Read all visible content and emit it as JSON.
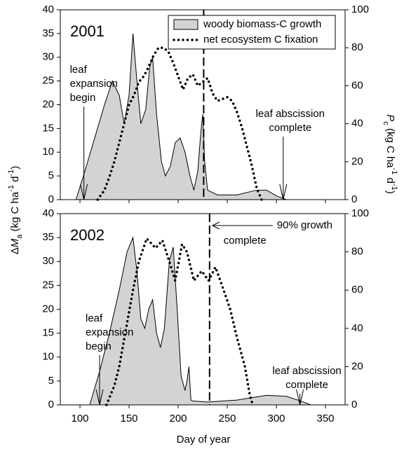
{
  "x_label": "Day of year",
  "y_label": [
    {
      "text": "Δ",
      "style": "normal"
    },
    {
      "text": "M",
      "style": "italic"
    },
    {
      "text": "a",
      "style": "sub"
    },
    {
      "text": "  (kg C ha",
      "style": "normal"
    },
    {
      "text": "-1",
      "style": "sup"
    },
    {
      "text": " d",
      "style": "normal"
    },
    {
      "text": "-1",
      "style": "sup"
    },
    {
      "text": ")",
      "style": "normal"
    }
  ],
  "y2_label": [
    {
      "text": "P",
      "style": "italic"
    },
    {
      "text": "c",
      "style": "sub"
    },
    {
      "text": " (kg C ha",
      "style": "normal"
    },
    {
      "text": "-1",
      "style": "sup"
    },
    {
      "text": " d",
      "style": "normal"
    },
    {
      "text": "-1",
      "style": "sup"
    },
    {
      "text": ")",
      "style": "normal"
    }
  ],
  "chart_data": [
    {
      "type": "line",
      "title": "2001",
      "legend": "upper right",
      "xlim": [
        80,
        370
      ],
      "xticks": [
        100,
        150,
        200,
        250,
        300,
        350
      ],
      "ylim": [
        0,
        40
      ],
      "yticks": [
        0,
        5,
        10,
        15,
        20,
        25,
        30,
        35,
        40
      ],
      "y2lim": [
        0,
        100
      ],
      "y2ticks": [
        0,
        20,
        40,
        60,
        80,
        100
      ],
      "series": [
        {
          "name": "woody biomass-C growth",
          "color": "#d3d3d3",
          "fill": true,
          "x": [
            96,
            105,
            115,
            125,
            133,
            140,
            145,
            150,
            154,
            158,
            162,
            167,
            171,
            174,
            178,
            183,
            187,
            192,
            197,
            202,
            207,
            212,
            216,
            220,
            223,
            225,
            227,
            230,
            240,
            260,
            280,
            290,
            300,
            310
          ],
          "values": [
            0,
            6,
            13,
            20,
            25,
            22,
            16,
            22,
            35,
            25,
            16,
            19,
            28,
            30,
            18,
            8,
            5,
            7,
            12,
            13,
            10,
            5,
            2,
            6,
            14,
            18,
            8,
            2,
            1,
            1,
            2,
            2,
            0.8,
            0
          ]
        },
        {
          "name": "net ecosystem C fixation",
          "color": "#000000",
          "dash": "dotted",
          "axis": "y2",
          "x": [
            118,
            125,
            130,
            135,
            140,
            145,
            150,
            155,
            160,
            165,
            170,
            175,
            180,
            185,
            190,
            195,
            200,
            205,
            210,
            215,
            220,
            225,
            230,
            235,
            240,
            245,
            250,
            255,
            260,
            265,
            270,
            275,
            280,
            285
          ],
          "values": [
            0,
            5,
            12,
            20,
            30,
            40,
            50,
            55,
            62,
            65,
            70,
            76,
            80,
            80,
            78,
            72,
            65,
            58,
            64,
            66,
            60,
            62,
            64,
            56,
            52,
            53,
            54,
            52,
            46,
            38,
            28,
            18,
            6,
            0
          ]
        }
      ],
      "vline": {
        "x": 226
      },
      "annotations": [
        {
          "text": [
            "leaf",
            "expansion",
            "begin"
          ],
          "x": 104
        },
        {
          "text": [
            "leaf abscission",
            "complete"
          ],
          "x": 307
        }
      ]
    },
    {
      "type": "line",
      "title": "2002",
      "xlim": [
        80,
        370
      ],
      "xticks": [
        100,
        150,
        200,
        250,
        300,
        350
      ],
      "ylim": [
        0,
        40
      ],
      "yticks": [
        0,
        5,
        10,
        15,
        20,
        25,
        30,
        35,
        40
      ],
      "y2lim": [
        0,
        100
      ],
      "y2ticks": [
        0,
        20,
        40,
        60,
        80,
        100
      ],
      "series": [
        {
          "color": "#d3d3d3",
          "fill": true,
          "x": [
            110,
            120,
            130,
            140,
            148,
            154,
            158,
            162,
            166,
            170,
            174,
            178,
            182,
            186,
            191,
            195,
            199,
            203,
            207,
            209,
            211,
            213,
            215,
            230,
            260,
            290,
            310,
            325,
            335
          ],
          "values": [
            0,
            7,
            15,
            24,
            32,
            35,
            28,
            18,
            16,
            20,
            22,
            15,
            12,
            16,
            30,
            33,
            20,
            6,
            3,
            5,
            8,
            1,
            0.8,
            0.6,
            1,
            2,
            1.8,
            0.8,
            0
          ]
        },
        {
          "color": "#000000",
          "dash": "dotted",
          "axis": "y2",
          "x": [
            127,
            135,
            140,
            147,
            154,
            160,
            168,
            177,
            184,
            191,
            197,
            204,
            209,
            216,
            224,
            231,
            238,
            245,
            253,
            260,
            268,
            273,
            276
          ],
          "values": [
            0,
            10,
            20,
            40,
            60,
            75,
            87,
            82,
            86,
            75,
            65,
            84,
            80,
            65,
            70,
            65,
            72,
            62,
            50,
            35,
            20,
            5,
            0
          ]
        }
      ],
      "vline": {
        "x": 232,
        "label": [
          "90% growth",
          "complete"
        ]
      },
      "annotations": [
        {
          "text": [
            "leaf",
            "expansion",
            "begin"
          ],
          "x": 120
        },
        {
          "text": [
            "leaf abscission",
            "complete"
          ],
          "x": 324
        }
      ]
    }
  ]
}
